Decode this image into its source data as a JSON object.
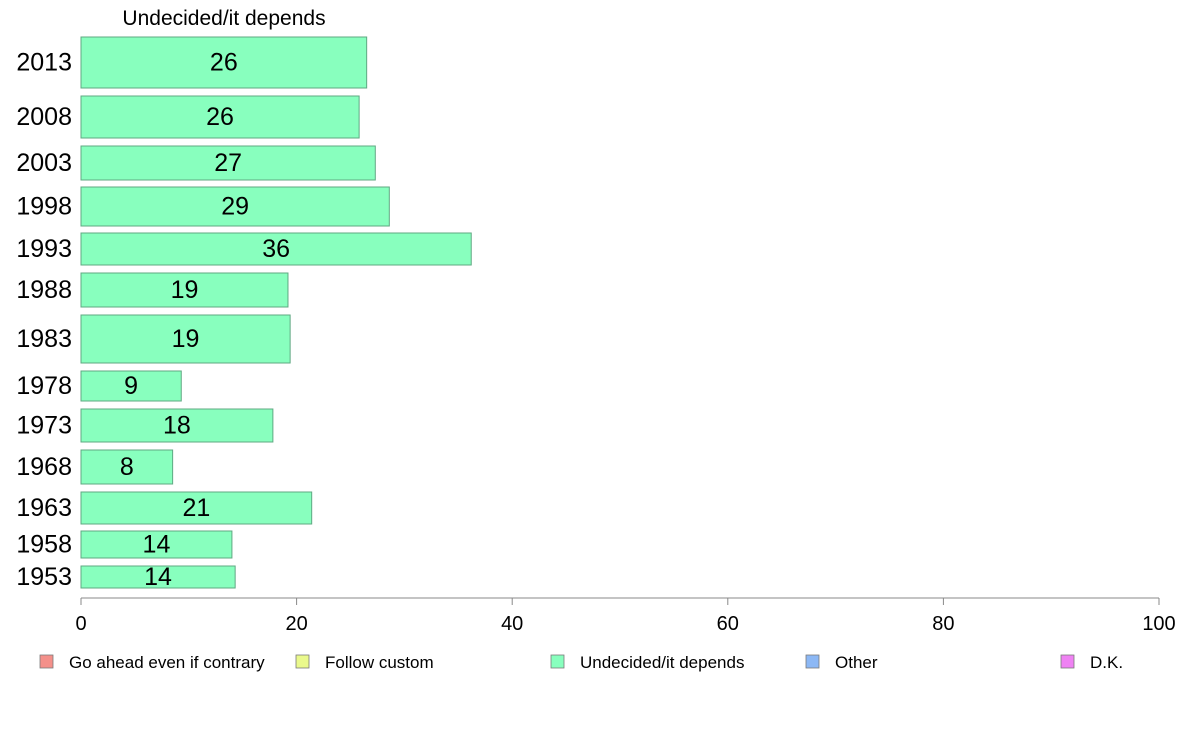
{
  "chart_data": {
    "type": "bar",
    "orientation": "horizontal",
    "title": "Undecided/it depends",
    "categories": [
      "2013",
      "2008",
      "2003",
      "1998",
      "1993",
      "1988",
      "1983",
      "1978",
      "1973",
      "1968",
      "1963",
      "1958",
      "1953"
    ],
    "series": [
      {
        "name": "Undecided/it depends",
        "values": [
          26.5,
          25.8,
          27.3,
          28.6,
          36.2,
          19.2,
          19.4,
          9.3,
          17.8,
          8.5,
          21.4,
          14.0,
          14.3
        ],
        "labels": [
          "26",
          "26",
          "27",
          "29",
          "36",
          "19",
          "19",
          "9",
          "18",
          "8",
          "21",
          "14",
          "14"
        ]
      }
    ],
    "xlim": [
      0,
      100
    ],
    "xticks": [
      "0",
      "20",
      "40",
      "60",
      "80",
      "100"
    ],
    "xlabel": "",
    "ylabel": "",
    "grid": false,
    "legend": {
      "placement": "bottom",
      "entries": [
        {
          "label": "Go ahead even if contrary",
          "color": "#f4908a"
        },
        {
          "label": "Follow custom",
          "color": "#eaf98c"
        },
        {
          "label": "Undecided/it depends",
          "color": "#88ffbe"
        },
        {
          "label": "Other",
          "color": "#8cb8f5"
        },
        {
          "label": "D.K.",
          "color": "#ef82f3"
        }
      ]
    },
    "colors": {
      "bar_fill": "#88ffbe",
      "bar_stroke": "#5fa882",
      "axis": "#888888"
    }
  }
}
